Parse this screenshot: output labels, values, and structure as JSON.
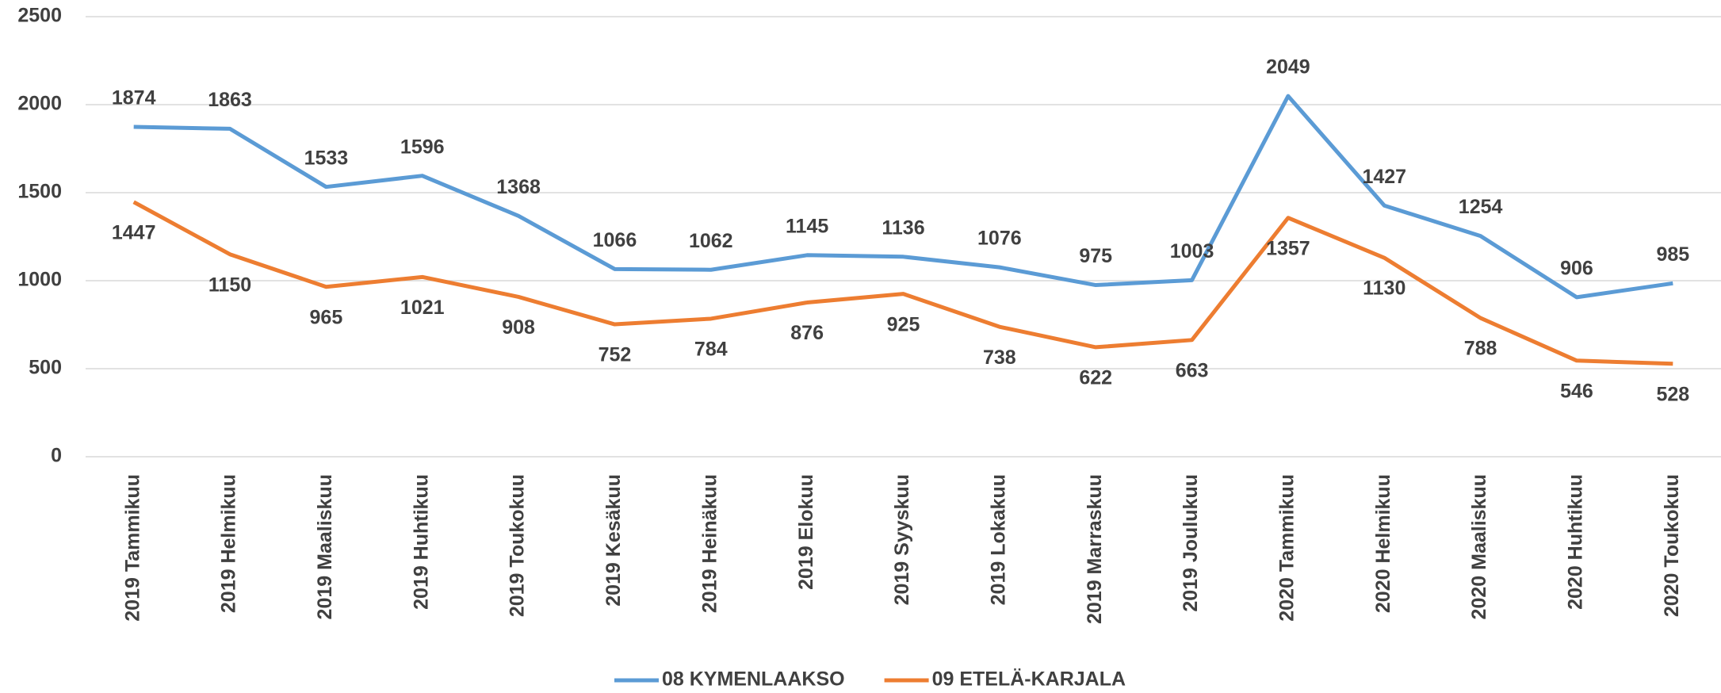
{
  "chart_data": {
    "type": "line",
    "categories": [
      "2019 Tammikuu",
      "2019 Helmikuu",
      "2019 Maaliskuu",
      "2019 Huhtikuu",
      "2019 Toukokuu",
      "2019 Kesäkuu",
      "2019 Heinäkuu",
      "2019 Elokuu",
      "2019 Syyskuu",
      "2019 Lokakuu",
      "2019 Marraskuu",
      "2019 Joulukuu",
      "2020 Tammikuu",
      "2020 Helmikuu",
      "2020 Maaliskuu",
      "2020 Huhtikuu",
      "2020 Toukokuu"
    ],
    "series": [
      {
        "name": "08 KYMENLAAKSO",
        "color": "#5b9bd5",
        "values": [
          1874,
          1863,
          1533,
          1596,
          1368,
          1066,
          1062,
          1145,
          1136,
          1076,
          975,
          1003,
          2049,
          1427,
          1254,
          906,
          985
        ]
      },
      {
        "name": "09 ETELÄ-KARJALA",
        "color": "#ed7d31",
        "values": [
          1447,
          1150,
          965,
          1021,
          908,
          752,
          784,
          876,
          925,
          738,
          622,
          663,
          1357,
          1130,
          788,
          546,
          528
        ]
      }
    ],
    "ylim": [
      0,
      2500
    ],
    "yticks": [
      0,
      500,
      1000,
      1500,
      2000,
      2500
    ],
    "grid": true,
    "legend": "bottom"
  }
}
